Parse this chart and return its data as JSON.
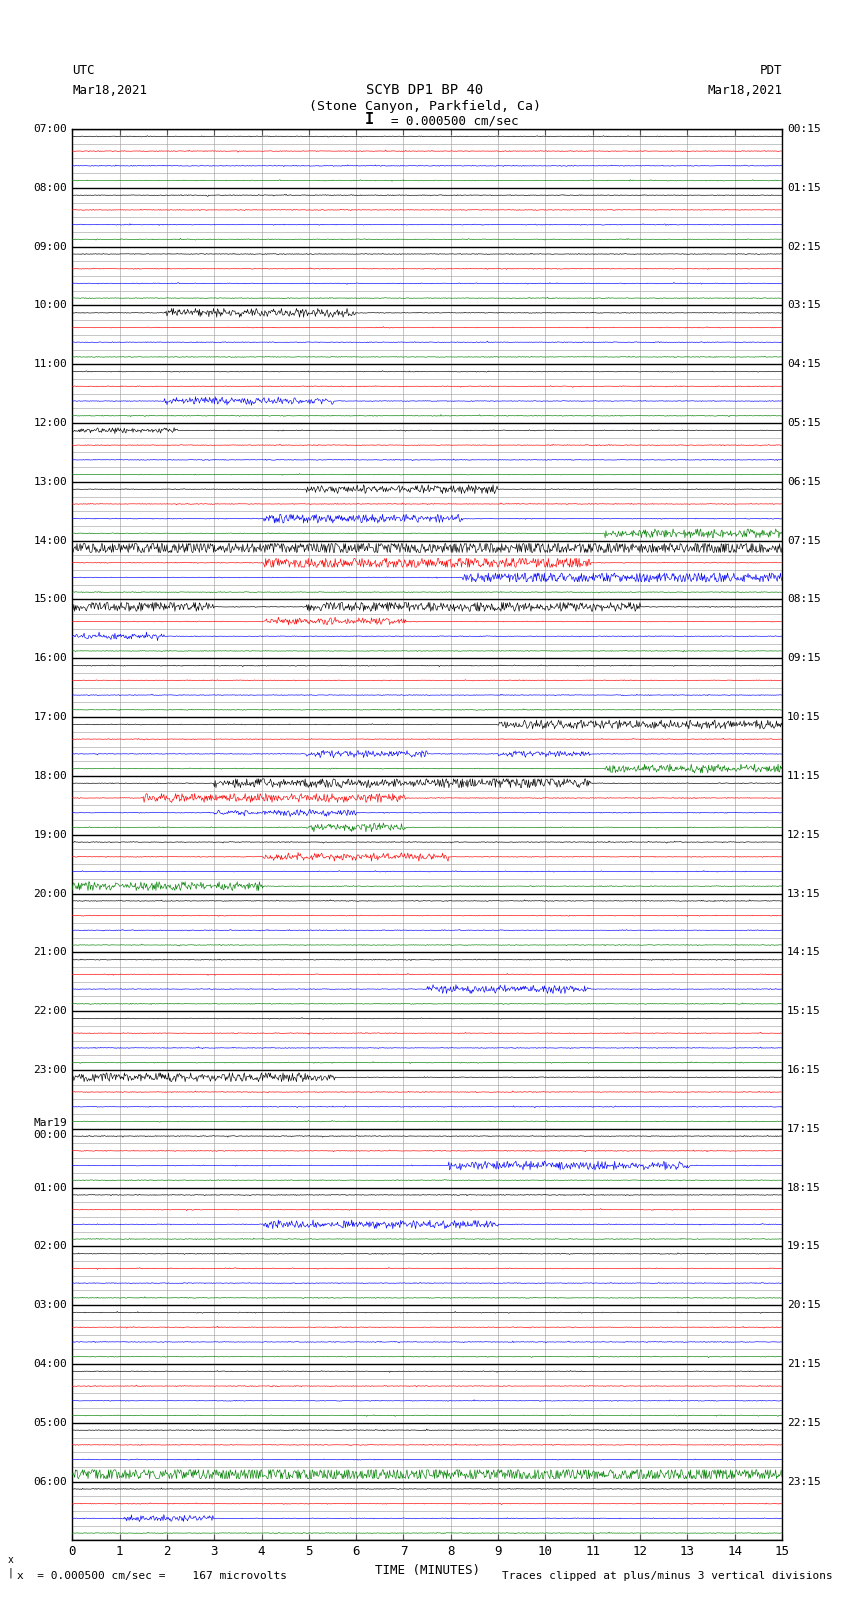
{
  "title_line1": "SCYB DP1 BP 40",
  "title_line2": "(Stone Canyon, Parkfield, Ca)",
  "scale_label": " = 0.000500 cm/sec",
  "utc_label": "UTC\nMar18,2021",
  "pdt_label": "PDT\nMar18,2021",
  "xlabel": "TIME (MINUTES)",
  "footer_left": "x  = 0.000500 cm/sec =    167 microvolts",
  "footer_right": "Traces clipped at plus/minus 3 vertical divisions",
  "xlim": [
    0,
    15
  ],
  "xticks": [
    0,
    1,
    2,
    3,
    4,
    5,
    6,
    7,
    8,
    9,
    10,
    11,
    12,
    13,
    14,
    15
  ],
  "bg_color": "white",
  "grid_color": "#999999",
  "left_times": [
    "07:00",
    "",
    "",
    "",
    "08:00",
    "",
    "",
    "",
    "09:00",
    "",
    "",
    "",
    "10:00",
    "",
    "",
    "",
    "11:00",
    "",
    "",
    "",
    "12:00",
    "",
    "",
    "",
    "13:00",
    "",
    "",
    "",
    "14:00",
    "",
    "",
    "",
    "15:00",
    "",
    "",
    "",
    "16:00",
    "",
    "",
    "",
    "17:00",
    "",
    "",
    "",
    "18:00",
    "",
    "",
    "",
    "19:00",
    "",
    "",
    "",
    "20:00",
    "",
    "",
    "",
    "21:00",
    "",
    "",
    "",
    "22:00",
    "",
    "",
    "",
    "23:00",
    "",
    "",
    "",
    "Mar19\n00:00",
    "",
    "",
    "",
    "01:00",
    "",
    "",
    "",
    "02:00",
    "",
    "",
    "",
    "03:00",
    "",
    "",
    "",
    "04:00",
    "",
    "",
    "",
    "05:00",
    "",
    "",
    "",
    "06:00",
    "",
    "",
    ""
  ],
  "right_times": [
    "00:15",
    "",
    "",
    "",
    "01:15",
    "",
    "",
    "",
    "02:15",
    "",
    "",
    "",
    "03:15",
    "",
    "",
    "",
    "04:15",
    "",
    "",
    "",
    "05:15",
    "",
    "",
    "",
    "06:15",
    "",
    "",
    "",
    "07:15",
    "",
    "",
    "",
    "08:15",
    "",
    "",
    "",
    "09:15",
    "",
    "",
    "",
    "10:15",
    "",
    "",
    "",
    "11:15",
    "",
    "",
    "",
    "12:15",
    "",
    "",
    "",
    "13:15",
    "",
    "",
    "",
    "14:15",
    "",
    "",
    "",
    "15:15",
    "",
    "",
    "",
    "16:15",
    "",
    "",
    "",
    "17:15",
    "",
    "",
    "",
    "18:15",
    "",
    "",
    "",
    "19:15",
    "",
    "",
    "",
    "20:15",
    "",
    "",
    "",
    "21:15",
    "",
    "",
    "",
    "22:15",
    "",
    "",
    "",
    "23:15",
    "",
    "",
    ""
  ],
  "figsize": [
    8.5,
    16.13
  ],
  "dpi": 100
}
